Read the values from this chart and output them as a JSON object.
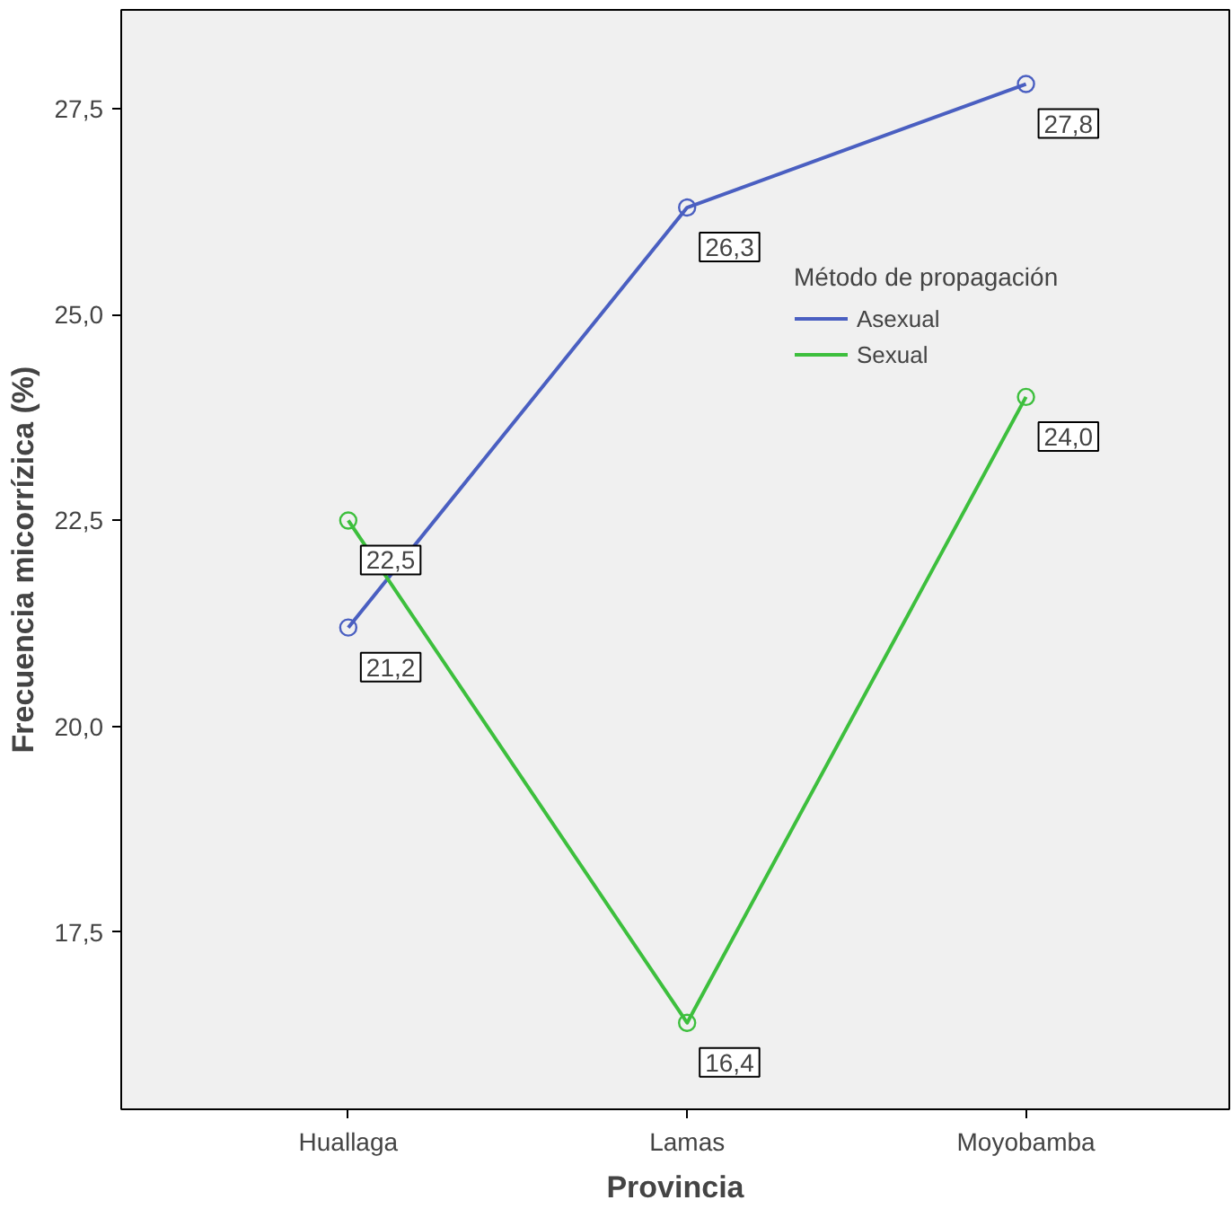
{
  "chart_data": {
    "type": "line",
    "xlabel": "Provincia",
    "ylabel": "Frecuencia micorrízica (%)",
    "legend_title": "Método de propagación",
    "categories": [
      "Huallaga",
      "Lamas",
      "Moyobamba"
    ],
    "series": [
      {
        "name": "Asexual",
        "color": "#4a5fc1",
        "values": [
          21.2,
          26.3,
          27.8
        ],
        "value_labels": [
          "21,2",
          "26,3",
          "27,8"
        ]
      },
      {
        "name": "Sexual",
        "color": "#3dbf3d",
        "values": [
          22.5,
          16.4,
          24.0
        ],
        "value_labels": [
          "22,5",
          "16,4",
          "24,0"
        ]
      }
    ],
    "ylim": [
      15.35,
      28.7
    ],
    "yticks": [
      {
        "value": 17.5,
        "label": "17,5"
      },
      {
        "value": 20.0,
        "label": "20,0"
      },
      {
        "value": 22.5,
        "label": "22,5"
      },
      {
        "value": 25.0,
        "label": "25,0"
      },
      {
        "value": 27.5,
        "label": "27,5"
      }
    ],
    "marker": "circle",
    "line_style": "solid",
    "grid": false,
    "legend": "top right"
  }
}
